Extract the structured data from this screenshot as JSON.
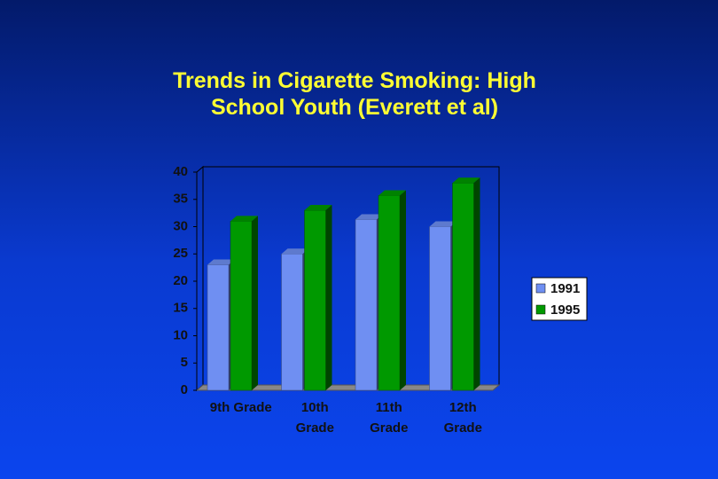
{
  "chart_data": {
    "type": "bar",
    "title": "Trends in Cigarette Smoking: High School Youth (Everett et al)",
    "categories": [
      "9th Grade",
      "10th\nGrade",
      "11th\nGrade",
      "12th\nGrade"
    ],
    "series": [
      {
        "name": "1991",
        "color": "#6f8ff2",
        "values": [
          23,
          25,
          31.3,
          30
        ]
      },
      {
        "name": "1995",
        "color": "#009900",
        "values": [
          31,
          33,
          35.7,
          38
        ]
      }
    ],
    "ylim": [
      0,
      40
    ],
    "yticks": [
      0,
      5,
      10,
      15,
      20,
      25,
      30,
      35,
      40
    ],
    "legend": "right"
  }
}
